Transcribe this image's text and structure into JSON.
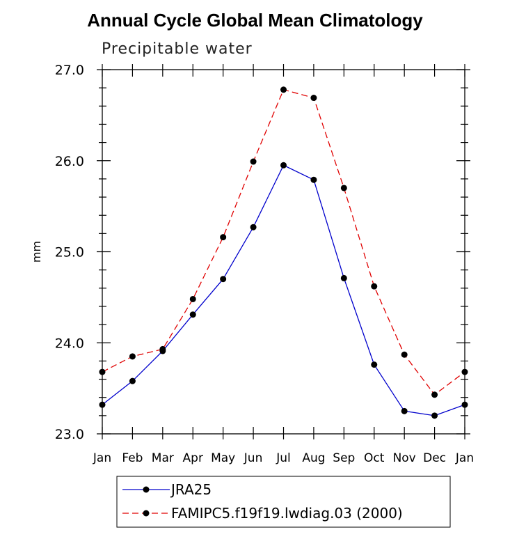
{
  "chart_data": {
    "type": "line",
    "title": "Annual Cycle Global Mean Climatology",
    "subtitle": "Precipitable water",
    "xlabel": "",
    "ylabel": "mm",
    "categories": [
      "Jan",
      "Feb",
      "Mar",
      "Apr",
      "May",
      "Jun",
      "Jul",
      "Aug",
      "Sep",
      "Oct",
      "Nov",
      "Dec",
      "Jan"
    ],
    "ylim": [
      23.0,
      27.0
    ],
    "yticks": [
      "23.0",
      "24.0",
      "25.0",
      "26.0",
      "27.0"
    ],
    "series": [
      {
        "name": "JRA25",
        "color": "#0000cc",
        "style": "solid",
        "values": [
          23.32,
          23.58,
          23.91,
          24.31,
          24.7,
          25.27,
          25.95,
          25.79,
          24.71,
          23.76,
          23.25,
          23.2,
          23.32
        ]
      },
      {
        "name": "FAMIPC5.f19f19.lwdiag.03 (2000)",
        "color": "#e00000",
        "style": "dashed",
        "values": [
          23.68,
          23.85,
          23.93,
          24.48,
          25.16,
          25.99,
          26.78,
          26.69,
          25.7,
          24.62,
          23.87,
          23.43,
          23.68
        ]
      }
    ]
  }
}
